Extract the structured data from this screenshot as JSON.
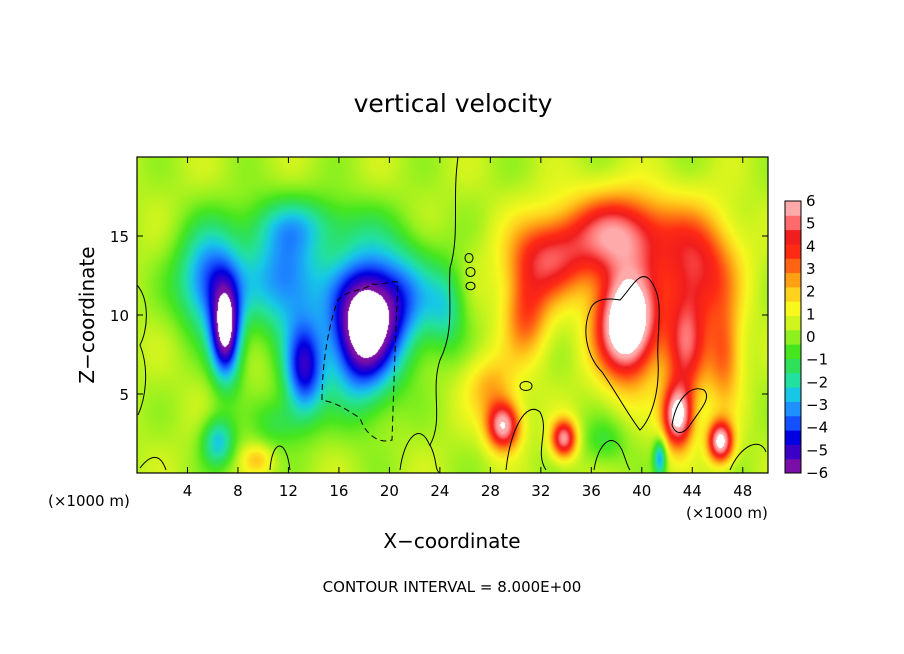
{
  "chart_data": {
    "type": "heatmap",
    "title": "vertical velocity",
    "xlabel": "X−coordinate",
    "ylabel": "Z−coordinate",
    "x_unit_left": "(×1000 m)",
    "x_unit_right": "(×1000 m)",
    "xlim": [
      0,
      50
    ],
    "ylim": [
      0,
      20
    ],
    "xticks": [
      4,
      8,
      12,
      16,
      20,
      24,
      28,
      32,
      36,
      40,
      44,
      48
    ],
    "yticks": [
      5,
      10,
      15
    ],
    "colorbar": {
      "range": [
        -6,
        6
      ],
      "ticks": [
        6,
        5,
        4,
        3,
        2,
        1,
        0,
        -1,
        -2,
        -3,
        -4,
        -5,
        -6
      ],
      "tick_labels": [
        "6",
        "5",
        "4",
        "3",
        "2",
        "1",
        "0",
        "−1",
        "−2",
        "−3",
        "−4",
        "−5",
        "−6"
      ],
      "colors": [
        "#7a0fa8",
        "#3a00c8",
        "#0000e0",
        "#1450ff",
        "#1e90ff",
        "#17c8e6",
        "#22e0a0",
        "#2ee05a",
        "#46e61e",
        "#8ef01e",
        "#d0f41e",
        "#f8f81e",
        "#ffd21e",
        "#ffa014",
        "#ff6414",
        "#ff2a14",
        "#f01e1e",
        "#ff6a6a",
        "#ffaaaa"
      ]
    },
    "contour_interval_text": "CONTOUR INTERVAL = 8.000E+00",
    "features": [
      {
        "x": 5.8,
        "z": 12.2,
        "value": -4.5,
        "sx": 2.6,
        "sz": 3.2
      },
      {
        "x": 7.0,
        "z": 8.8,
        "value": -6.5,
        "sx": 1.2,
        "sz": 3.0
      },
      {
        "x": 11.8,
        "z": 12.3,
        "value": -4.0,
        "sx": 3.0,
        "sz": 3.5
      },
      {
        "x": 17.8,
        "z": 9.2,
        "value": -7.5,
        "sx": 2.7,
        "sz": 4.3
      },
      {
        "x": 20.8,
        "z": 11.0,
        "value": -3.5,
        "sx": 3.0,
        "sz": 3.5
      },
      {
        "x": 13.2,
        "z": 6.5,
        "value": -5.0,
        "sx": 1.6,
        "sz": 3.0
      },
      {
        "x": 24.5,
        "z": 10.5,
        "value": -2.0,
        "sx": 1.5,
        "sz": 2.6
      },
      {
        "x": 13.0,
        "z": 15.8,
        "value": -1.8,
        "sx": 5.0,
        "sz": 1.8
      },
      {
        "x": 6.4,
        "z": 2.0,
        "value": -3.0,
        "sx": 1.3,
        "sz": 1.6
      },
      {
        "x": 11.0,
        "z": 3.2,
        "value": -1.4,
        "sx": 1.8,
        "sz": 1.6
      },
      {
        "x": 32.5,
        "z": 13.6,
        "value": 4.0,
        "sx": 3.2,
        "sz": 2.6
      },
      {
        "x": 38.2,
        "z": 15.2,
        "value": 5.0,
        "sx": 4.2,
        "sz": 2.6
      },
      {
        "x": 44.5,
        "z": 13.0,
        "value": 4.0,
        "sx": 3.0,
        "sz": 3.5
      },
      {
        "x": 38.8,
        "z": 9.5,
        "value": 8.5,
        "sx": 2.4,
        "sz": 3.4
      },
      {
        "x": 30.8,
        "z": 10.0,
        "value": 3.0,
        "sx": 1.8,
        "sz": 2.8
      },
      {
        "x": 43.5,
        "z": 8.0,
        "value": 4.0,
        "sx": 1.6,
        "sz": 3.4
      },
      {
        "x": 46.5,
        "z": 7.5,
        "value": 3.0,
        "sx": 1.4,
        "sz": 3.2
      },
      {
        "x": 29.0,
        "z": 3.0,
        "value": 6.0,
        "sx": 1.3,
        "sz": 1.5
      },
      {
        "x": 33.8,
        "z": 2.2,
        "value": 5.5,
        "sx": 1.0,
        "sz": 1.2
      },
      {
        "x": 46.2,
        "z": 2.0,
        "value": 6.5,
        "sx": 1.0,
        "sz": 1.3
      },
      {
        "x": 42.8,
        "z": 3.6,
        "value": 6.5,
        "sx": 1.2,
        "sz": 2.0
      },
      {
        "x": 28.0,
        "z": 5.5,
        "value": 2.0,
        "sx": 2.0,
        "sz": 2.0
      },
      {
        "x": 41.4,
        "z": 1.0,
        "value": -3.5,
        "sx": 0.5,
        "sz": 1.2
      },
      {
        "x": 37.0,
        "z": 2.0,
        "value": -1.3,
        "sx": 1.8,
        "sz": 1.5
      },
      {
        "x": 9.5,
        "z": 0.9,
        "value": 1.6,
        "sx": 1.2,
        "sz": 0.9
      }
    ]
  }
}
